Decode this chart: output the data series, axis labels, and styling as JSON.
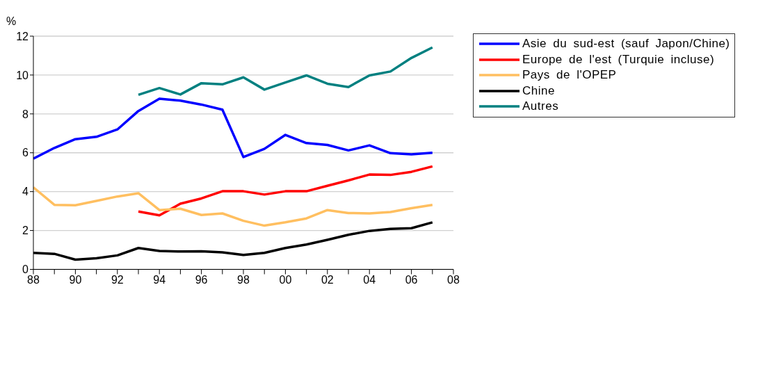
{
  "chart_data": {
    "type": "line",
    "ylabel": "%",
    "x": [
      1988,
      1989,
      1990,
      1991,
      1992,
      1993,
      1994,
      1995,
      1996,
      1997,
      1998,
      1999,
      2000,
      2001,
      2002,
      2003,
      2004,
      2005,
      2006,
      2007
    ],
    "xlim": [
      1988,
      2008
    ],
    "xticks": [
      {
        "value": 1988,
        "label": "88"
      },
      {
        "value": 1989,
        "label": null
      },
      {
        "value": 1990,
        "label": "90"
      },
      {
        "value": 1991,
        "label": null
      },
      {
        "value": 1992,
        "label": "92"
      },
      {
        "value": 1993,
        "label": null
      },
      {
        "value": 1994,
        "label": "94"
      },
      {
        "value": 1995,
        "label": null
      },
      {
        "value": 1996,
        "label": "96"
      },
      {
        "value": 1997,
        "label": null
      },
      {
        "value": 1998,
        "label": "98"
      },
      {
        "value": 1999,
        "label": null
      },
      {
        "value": 2000,
        "label": "00"
      },
      {
        "value": 2001,
        "label": null
      },
      {
        "value": 2002,
        "label": "02"
      },
      {
        "value": 2003,
        "label": null
      },
      {
        "value": 2004,
        "label": "04"
      },
      {
        "value": 2005,
        "label": null
      },
      {
        "value": 2006,
        "label": "06"
      },
      {
        "value": 2007,
        "label": null
      },
      {
        "value": 2008,
        "label": "08"
      }
    ],
    "ylim": [
      0,
      12
    ],
    "yticks": [
      0,
      2,
      4,
      6,
      8,
      10,
      12
    ],
    "grid": "y",
    "legend": "top right",
    "marker": "none",
    "line_style": "solid",
    "series": [
      {
        "name": "Asie du sud-est (sauf Japon/Chine)",
        "color": "#0000ff",
        "values": [
          5.7,
          6.25,
          6.7,
          6.82,
          7.2,
          8.15,
          8.78,
          8.68,
          8.48,
          8.22,
          5.78,
          6.2,
          6.92,
          6.5,
          6.4,
          6.12,
          6.38,
          5.98,
          5.92,
          6.0
        ]
      },
      {
        "name": "Europe de l'est (Turquie incluse)",
        "color": "#ff0000",
        "values": [
          null,
          null,
          null,
          null,
          null,
          2.98,
          2.78,
          3.38,
          3.65,
          4.02,
          4.02,
          3.85,
          4.02,
          4.02,
          4.3,
          4.58,
          4.88,
          4.86,
          5.02,
          5.3
        ]
      },
      {
        "name": "Pays de l'OPEP",
        "color": "#ffbf60",
        "values": [
          4.22,
          3.32,
          3.3,
          3.52,
          3.75,
          3.92,
          3.05,
          3.12,
          2.8,
          2.88,
          2.5,
          2.25,
          2.42,
          2.62,
          3.05,
          2.9,
          2.88,
          2.95,
          3.15,
          3.32
        ]
      },
      {
        "name": "Chine",
        "color": "#000000",
        "values": [
          0.85,
          0.8,
          0.5,
          0.57,
          0.72,
          1.1,
          0.95,
          0.92,
          0.93,
          0.88,
          0.74,
          0.85,
          1.1,
          1.28,
          1.52,
          1.78,
          1.98,
          2.08,
          2.12,
          2.42
        ]
      },
      {
        "name": "Autres",
        "color": "#008080",
        "values": [
          null,
          null,
          null,
          null,
          null,
          8.98,
          9.33,
          9.0,
          9.58,
          9.52,
          9.88,
          9.25,
          9.62,
          9.98,
          9.55,
          9.38,
          9.98,
          10.18,
          10.88,
          11.42
        ]
      }
    ]
  }
}
